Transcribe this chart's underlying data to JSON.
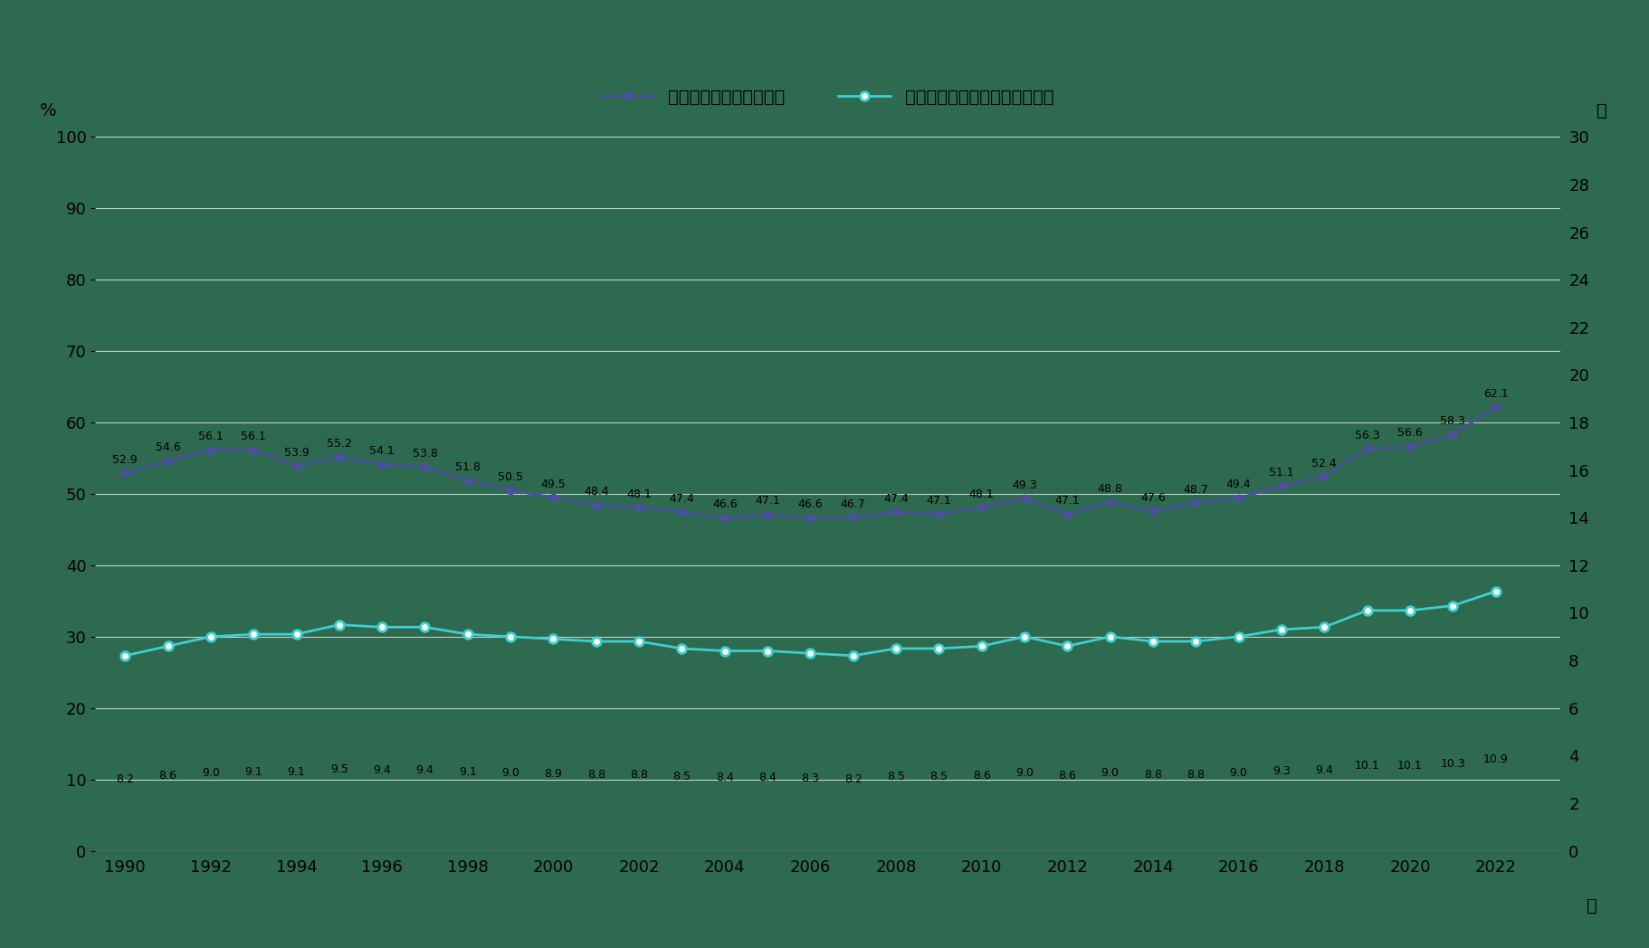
{
  "years": [
    1990,
    1991,
    1992,
    1993,
    1994,
    1995,
    1996,
    1997,
    1998,
    1999,
    2000,
    2001,
    2002,
    2003,
    2004,
    2005,
    2006,
    2007,
    2008,
    2009,
    2010,
    2011,
    2012,
    2013,
    2014,
    2015,
    2016,
    2017,
    2018,
    2019,
    2020,
    2021,
    2022
  ],
  "rate": [
    52.9,
    54.6,
    56.1,
    56.1,
    53.9,
    55.2,
    54.1,
    53.8,
    51.8,
    50.5,
    49.5,
    48.4,
    48.1,
    47.4,
    46.6,
    47.1,
    46.6,
    46.7,
    47.4,
    47.1,
    48.1,
    49.3,
    47.1,
    48.8,
    47.6,
    48.7,
    49.4,
    51.1,
    52.4,
    56.3,
    56.6,
    58.3,
    62.1
  ],
  "avg_days": [
    8.2,
    8.6,
    9.0,
    9.1,
    9.1,
    9.5,
    9.4,
    9.4,
    9.1,
    9.0,
    8.9,
    8.8,
    8.8,
    8.5,
    8.4,
    8.4,
    8.3,
    8.2,
    8.5,
    8.5,
    8.6,
    9.0,
    8.6,
    9.0,
    8.8,
    8.8,
    9.0,
    9.3,
    9.4,
    10.1,
    10.1,
    10.3,
    10.9
  ],
  "rate_labels": [
    "52.9",
    "54.6",
    "56.1",
    "56.1",
    "53.9",
    "55.2",
    "54.1",
    "53.8",
    "51.8",
    "50.5",
    "49.5",
    "48.4",
    "48.1",
    "47.4",
    "46.6",
    "47.1",
    "46.6",
    "46.7",
    "47.4",
    "47.1",
    "48.1",
    "49.3",
    "47.1",
    "48.8",
    "47.6",
    "48.7",
    "49.4",
    "51.1",
    "52.4",
    "56.3",
    "56.6",
    "58.3",
    "62.1"
  ],
  "avg_labels": [
    "8.2",
    "8.6",
    "9.0",
    "9.1",
    "9.1",
    "9.5",
    "9.4",
    "9.4",
    "9.1",
    "9.0",
    "8.9",
    "8.8",
    "8.8",
    "8.5",
    "8.4",
    "8.4",
    "8.3",
    "8.2",
    "8.5",
    "8.5",
    "8.6",
    "9.0",
    "8.6",
    "9.0",
    "8.8",
    "8.8",
    "9.0",
    "9.3",
    "9.4",
    "10.1",
    "10.1",
    "10.3",
    "10.9"
  ],
  "rate_color": "#4D4F9F",
  "avg_color": "#3ECFCF",
  "bg_color": "#2D6A4F",
  "plot_area_bg": "#2D6A4F",
  "legend_rate": "有給休暇取得率（左軸）",
  "legend_avg": "有給休暇平均取得日数（右軸）",
  "ylabel_left": "%",
  "ylabel_right": "日",
  "xlabel": "年",
  "ylim_left": [
    0,
    100
  ],
  "ylim_right": [
    0,
    30
  ],
  "yticks_left": [
    0,
    10,
    20,
    30,
    40,
    50,
    60,
    70,
    80,
    90,
    100
  ],
  "yticks_right": [
    0,
    2,
    4,
    6,
    8,
    10,
    12,
    14,
    16,
    18,
    20,
    22,
    24,
    26,
    28,
    30
  ],
  "grid_color": "#AAAAAA",
  "tick_label_color": "#000000",
  "label_fontsize": 9,
  "axis_fontsize": 14,
  "tick_fontsize": 13,
  "legend_fontsize": 14
}
